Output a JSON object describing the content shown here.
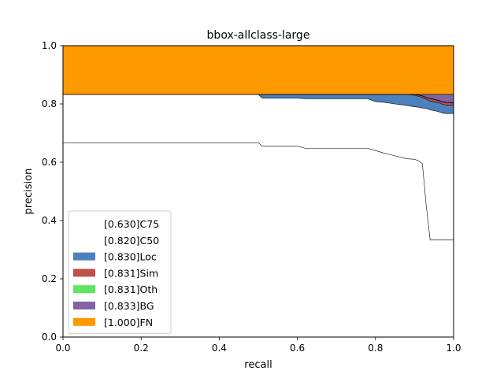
{
  "chart_data": {
    "type": "area",
    "title": "bbox-allclass-large",
    "xlabel": "recall",
    "ylabel": "precision",
    "xlim": [
      0,
      1
    ],
    "ylim": [
      0,
      1
    ],
    "xticks": [
      "0.0",
      "0.2",
      "0.4",
      "0.6",
      "0.8",
      "1.0"
    ],
    "yticks": [
      "0.0",
      "0.2",
      "0.4",
      "0.6",
      "0.8",
      "1.0"
    ],
    "grid": false,
    "legend_position": "lower-left",
    "x": [
      0,
      0.5,
      0.51,
      0.6,
      0.62,
      0.7,
      0.78,
      0.8,
      0.82,
      0.85,
      0.88,
      0.9,
      0.91,
      0.92,
      0.93,
      0.94,
      0.96,
      0.97,
      0.98,
      1.0
    ],
    "series": [
      {
        "name": "[0.630]C75",
        "color": "#ffffff",
        "values": [
          0.667,
          0.667,
          0.655,
          0.655,
          0.648,
          0.648,
          0.648,
          0.64,
          0.632,
          0.622,
          0.612,
          0.61,
          0.605,
          0.595,
          0.45,
          0.333,
          0.333,
          0.333,
          0.333,
          0.333
        ]
      },
      {
        "name": "[0.820]C50",
        "color": "#ffffff",
        "values": [
          0.833,
          0.833,
          0.82,
          0.82,
          0.818,
          0.818,
          0.818,
          0.808,
          0.806,
          0.8,
          0.795,
          0.79,
          0.789,
          0.786,
          0.785,
          0.78,
          0.774,
          0.769,
          0.767,
          0.767
        ]
      },
      {
        "name": "[0.830]Loc",
        "color": "#4c81bd",
        "values": [
          0.833,
          0.833,
          0.833,
          0.833,
          0.833,
          0.833,
          0.833,
          0.833,
          0.833,
          0.833,
          0.833,
          0.83,
          0.826,
          0.822,
          0.816,
          0.81,
          0.805,
          0.8,
          0.796,
          0.795
        ]
      },
      {
        "name": "[0.831]Sim",
        "color": "#c0504d",
        "values": [
          0.833,
          0.833,
          0.833,
          0.833,
          0.833,
          0.833,
          0.833,
          0.833,
          0.833,
          0.833,
          0.833,
          0.833,
          0.83,
          0.827,
          0.822,
          0.818,
          0.812,
          0.807,
          0.805,
          0.803
        ]
      },
      {
        "name": "[0.831]Oth",
        "color": "#5ee65e",
        "values": [
          0.833,
          0.833,
          0.833,
          0.833,
          0.833,
          0.833,
          0.833,
          0.833,
          0.833,
          0.833,
          0.833,
          0.833,
          0.831,
          0.828,
          0.823,
          0.819,
          0.813,
          0.808,
          0.806,
          0.804
        ]
      },
      {
        "name": "[0.833]BG",
        "color": "#8064a2",
        "values": [
          0.833,
          0.833,
          0.833,
          0.833,
          0.833,
          0.833,
          0.833,
          0.833,
          0.833,
          0.833,
          0.833,
          0.833,
          0.833,
          0.833,
          0.833,
          0.833,
          0.833,
          0.833,
          0.833,
          0.833
        ]
      },
      {
        "name": "[1.000]FN",
        "color": "#ff9900",
        "values": [
          1.0,
          1.0,
          1.0,
          1.0,
          1.0,
          1.0,
          1.0,
          1.0,
          1.0,
          1.0,
          1.0,
          1.0,
          1.0,
          1.0,
          1.0,
          1.0,
          1.0,
          1.0,
          1.0,
          1.0
        ]
      }
    ]
  }
}
